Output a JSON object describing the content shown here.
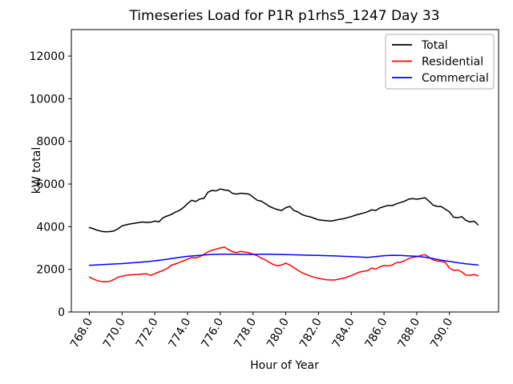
{
  "chart_data": {
    "type": "line",
    "title": "Timeseries Load for P1R p1rhs5_1247  Day 33",
    "xlabel": "Hour of Year",
    "ylabel": "kW total",
    "xlim": [
      766.9,
      793.0
    ],
    "ylim": [
      0,
      13240
    ],
    "x_ticks": [
      768,
      770,
      772,
      774,
      776,
      778,
      780,
      782,
      784,
      786,
      788,
      790
    ],
    "x_tick_decimals": 1,
    "y_ticks": [
      0,
      2000,
      4000,
      6000,
      8000,
      10000,
      12000
    ],
    "grid": "off",
    "legend_position": "upper right",
    "axis_color": "#000000",
    "legend_border_color": "#b0b0b0",
    "series": [
      {
        "name": "Total",
        "color": "#000000",
        "x": [
          768.0,
          768.25,
          768.5,
          768.75,
          769.0,
          769.25,
          769.5,
          769.75,
          770.0,
          770.25,
          770.5,
          770.75,
          771.0,
          771.25,
          771.5,
          771.75,
          772.0,
          772.25,
          772.5,
          772.75,
          773.0,
          773.25,
          773.5,
          773.75,
          774.0,
          774.25,
          774.5,
          774.75,
          775.0,
          775.25,
          775.5,
          775.75,
          776.0,
          776.25,
          776.5,
          776.75,
          777.0,
          777.25,
          777.5,
          777.75,
          778.0,
          778.25,
          778.5,
          778.75,
          779.0,
          779.25,
          779.5,
          779.75,
          780.0,
          780.25,
          780.5,
          780.75,
          781.0,
          781.25,
          781.5,
          781.75,
          782.0,
          782.25,
          782.5,
          782.75,
          783.0,
          783.25,
          783.5,
          783.75,
          784.0,
          784.25,
          784.5,
          784.75,
          785.0,
          785.25,
          785.5,
          785.75,
          786.0,
          786.25,
          786.5,
          786.75,
          787.0,
          787.25,
          787.5,
          787.75,
          788.0,
          788.25,
          788.5,
          788.75,
          789.0,
          789.25,
          789.5,
          789.75,
          790.0,
          790.25,
          790.5,
          790.75,
          791.0,
          791.25,
          791.5,
          791.75
        ],
        "y": [
          3960,
          3900,
          3830,
          3780,
          3760,
          3770,
          3800,
          3900,
          4040,
          4090,
          4130,
          4160,
          4190,
          4220,
          4200,
          4210,
          4260,
          4230,
          4420,
          4500,
          4570,
          4680,
          4760,
          4900,
          5080,
          5240,
          5180,
          5300,
          5330,
          5620,
          5700,
          5680,
          5770,
          5720,
          5700,
          5560,
          5530,
          5570,
          5550,
          5530,
          5390,
          5240,
          5200,
          5080,
          4950,
          4870,
          4800,
          4760,
          4890,
          4950,
          4760,
          4690,
          4570,
          4500,
          4460,
          4390,
          4320,
          4300,
          4280,
          4260,
          4300,
          4340,
          4370,
          4420,
          4470,
          4540,
          4590,
          4640,
          4700,
          4790,
          4760,
          4880,
          4940,
          5000,
          4990,
          5070,
          5130,
          5190,
          5290,
          5320,
          5290,
          5320,
          5360,
          5200,
          5010,
          4950,
          4940,
          4820,
          4700,
          4450,
          4420,
          4470,
          4300,
          4220,
          4260,
          4090
        ]
      },
      {
        "name": "Residential",
        "color": "#ff0000",
        "x": [
          768.0,
          768.25,
          768.5,
          768.75,
          769.0,
          769.25,
          769.5,
          769.75,
          770.0,
          770.25,
          770.5,
          770.75,
          771.0,
          771.25,
          771.5,
          771.75,
          772.0,
          772.25,
          772.5,
          772.75,
          773.0,
          773.25,
          773.5,
          773.75,
          774.0,
          774.25,
          774.5,
          774.75,
          775.0,
          775.25,
          775.5,
          775.75,
          776.0,
          776.25,
          776.5,
          776.75,
          777.0,
          777.25,
          777.5,
          777.75,
          778.0,
          778.25,
          778.5,
          778.75,
          779.0,
          779.25,
          779.5,
          779.75,
          780.0,
          780.25,
          780.5,
          780.75,
          781.0,
          781.25,
          781.5,
          781.75,
          782.0,
          782.25,
          782.5,
          782.75,
          783.0,
          783.25,
          783.5,
          783.75,
          784.0,
          784.25,
          784.5,
          784.75,
          785.0,
          785.25,
          785.5,
          785.75,
          786.0,
          786.25,
          786.5,
          786.75,
          787.0,
          787.25,
          787.5,
          787.75,
          788.0,
          788.25,
          788.5,
          788.75,
          789.0,
          789.25,
          789.5,
          789.75,
          790.0,
          790.25,
          790.5,
          790.75,
          791.0,
          791.25,
          791.5,
          791.75
        ],
        "y": [
          1640,
          1540,
          1470,
          1430,
          1420,
          1440,
          1520,
          1630,
          1680,
          1720,
          1740,
          1750,
          1760,
          1780,
          1790,
          1715,
          1800,
          1875,
          1950,
          2040,
          2190,
          2250,
          2320,
          2400,
          2480,
          2550,
          2530,
          2600,
          2700,
          2820,
          2900,
          2950,
          3000,
          3040,
          2920,
          2820,
          2790,
          2840,
          2810,
          2780,
          2710,
          2640,
          2520,
          2440,
          2320,
          2220,
          2170,
          2200,
          2290,
          2200,
          2080,
          1950,
          1840,
          1760,
          1680,
          1620,
          1580,
          1540,
          1510,
          1500,
          1500,
          1540,
          1580,
          1630,
          1710,
          1790,
          1870,
          1910,
          1940,
          2060,
          2010,
          2120,
          2180,
          2160,
          2200,
          2310,
          2330,
          2400,
          2500,
          2560,
          2590,
          2650,
          2690,
          2570,
          2440,
          2390,
          2370,
          2320,
          2060,
          1950,
          1970,
          1880,
          1730,
          1720,
          1760,
          1690
        ]
      },
      {
        "name": "Commercial",
        "color": "#0000ff",
        "x": [
          768.0,
          768.5,
          769.0,
          769.5,
          770.0,
          770.5,
          771.0,
          771.5,
          772.0,
          772.5,
          773.0,
          773.5,
          774.0,
          774.5,
          775.0,
          775.5,
          776.0,
          776.5,
          777.0,
          777.5,
          778.0,
          778.5,
          779.0,
          779.5,
          780.0,
          780.5,
          781.0,
          781.5,
          782.0,
          782.5,
          783.0,
          783.5,
          784.0,
          784.5,
          785.0,
          785.5,
          786.0,
          786.5,
          787.0,
          787.5,
          788.0,
          788.5,
          789.0,
          789.5,
          790.0,
          790.5,
          791.0,
          791.5,
          791.75
        ],
        "y": [
          2190,
          2210,
          2230,
          2250,
          2270,
          2300,
          2330,
          2360,
          2400,
          2450,
          2500,
          2560,
          2610,
          2640,
          2670,
          2700,
          2710,
          2710,
          2710,
          2700,
          2700,
          2710,
          2710,
          2700,
          2690,
          2680,
          2670,
          2660,
          2650,
          2640,
          2630,
          2610,
          2600,
          2580,
          2560,
          2600,
          2640,
          2660,
          2650,
          2630,
          2610,
          2570,
          2500,
          2430,
          2370,
          2310,
          2260,
          2220,
          2200
        ]
      }
    ]
  }
}
